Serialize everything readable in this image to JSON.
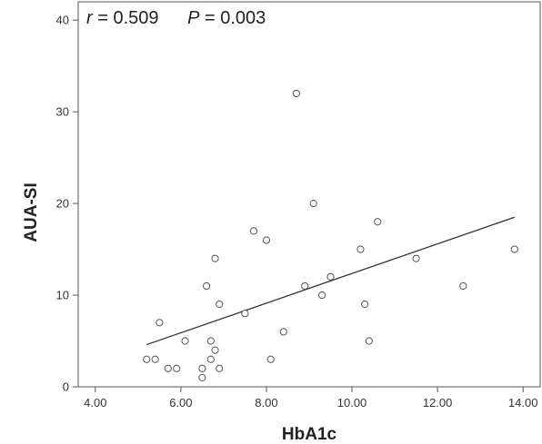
{
  "chart_data": {
    "type": "scatter",
    "xlabel": "HbA1c",
    "ylabel": "AUA-SI",
    "xlim": [
      3.6,
      14.4
    ],
    "ylim": [
      0,
      42
    ],
    "xticks": [
      "4.00",
      "6.00",
      "8.00",
      "10.00",
      "12.00",
      "14.00"
    ],
    "xtick_values": [
      4,
      6,
      8,
      10,
      12,
      14
    ],
    "yticks": [
      "0",
      "10",
      "20",
      "30",
      "40"
    ],
    "ytick_values": [
      0,
      10,
      20,
      30,
      40
    ],
    "grid": false,
    "annotation": {
      "r_symbol": "r",
      "r_text": " = 0.509",
      "p_symbol": "P",
      "p_text": " = 0.003"
    },
    "fit_line": {
      "x": [
        5.2,
        13.8
      ],
      "y": [
        4.6,
        18.5
      ]
    },
    "points": [
      {
        "x": 5.2,
        "y": 3
      },
      {
        "x": 5.4,
        "y": 3
      },
      {
        "x": 5.5,
        "y": 7
      },
      {
        "x": 5.7,
        "y": 2
      },
      {
        "x": 5.9,
        "y": 2
      },
      {
        "x": 6.1,
        "y": 5
      },
      {
        "x": 6.5,
        "y": 2
      },
      {
        "x": 6.5,
        "y": 1
      },
      {
        "x": 6.6,
        "y": 11
      },
      {
        "x": 6.7,
        "y": 5
      },
      {
        "x": 6.7,
        "y": 3
      },
      {
        "x": 6.8,
        "y": 14
      },
      {
        "x": 6.8,
        "y": 4
      },
      {
        "x": 6.9,
        "y": 9
      },
      {
        "x": 6.9,
        "y": 2
      },
      {
        "x": 7.5,
        "y": 8
      },
      {
        "x": 7.7,
        "y": 17
      },
      {
        "x": 8.0,
        "y": 16
      },
      {
        "x": 8.1,
        "y": 3
      },
      {
        "x": 8.4,
        "y": 6
      },
      {
        "x": 8.7,
        "y": 32
      },
      {
        "x": 8.9,
        "y": 11
      },
      {
        "x": 9.1,
        "y": 20
      },
      {
        "x": 9.3,
        "y": 10
      },
      {
        "x": 9.5,
        "y": 12
      },
      {
        "x": 10.2,
        "y": 15
      },
      {
        "x": 10.3,
        "y": 9
      },
      {
        "x": 10.4,
        "y": 5
      },
      {
        "x": 10.6,
        "y": 18
      },
      {
        "x": 11.5,
        "y": 14
      },
      {
        "x": 12.6,
        "y": 11
      },
      {
        "x": 13.8,
        "y": 15
      }
    ]
  },
  "colors": {
    "axis": "#555555",
    "point_stroke": "#555555",
    "line": "#333333",
    "background": "#ffffff"
  }
}
